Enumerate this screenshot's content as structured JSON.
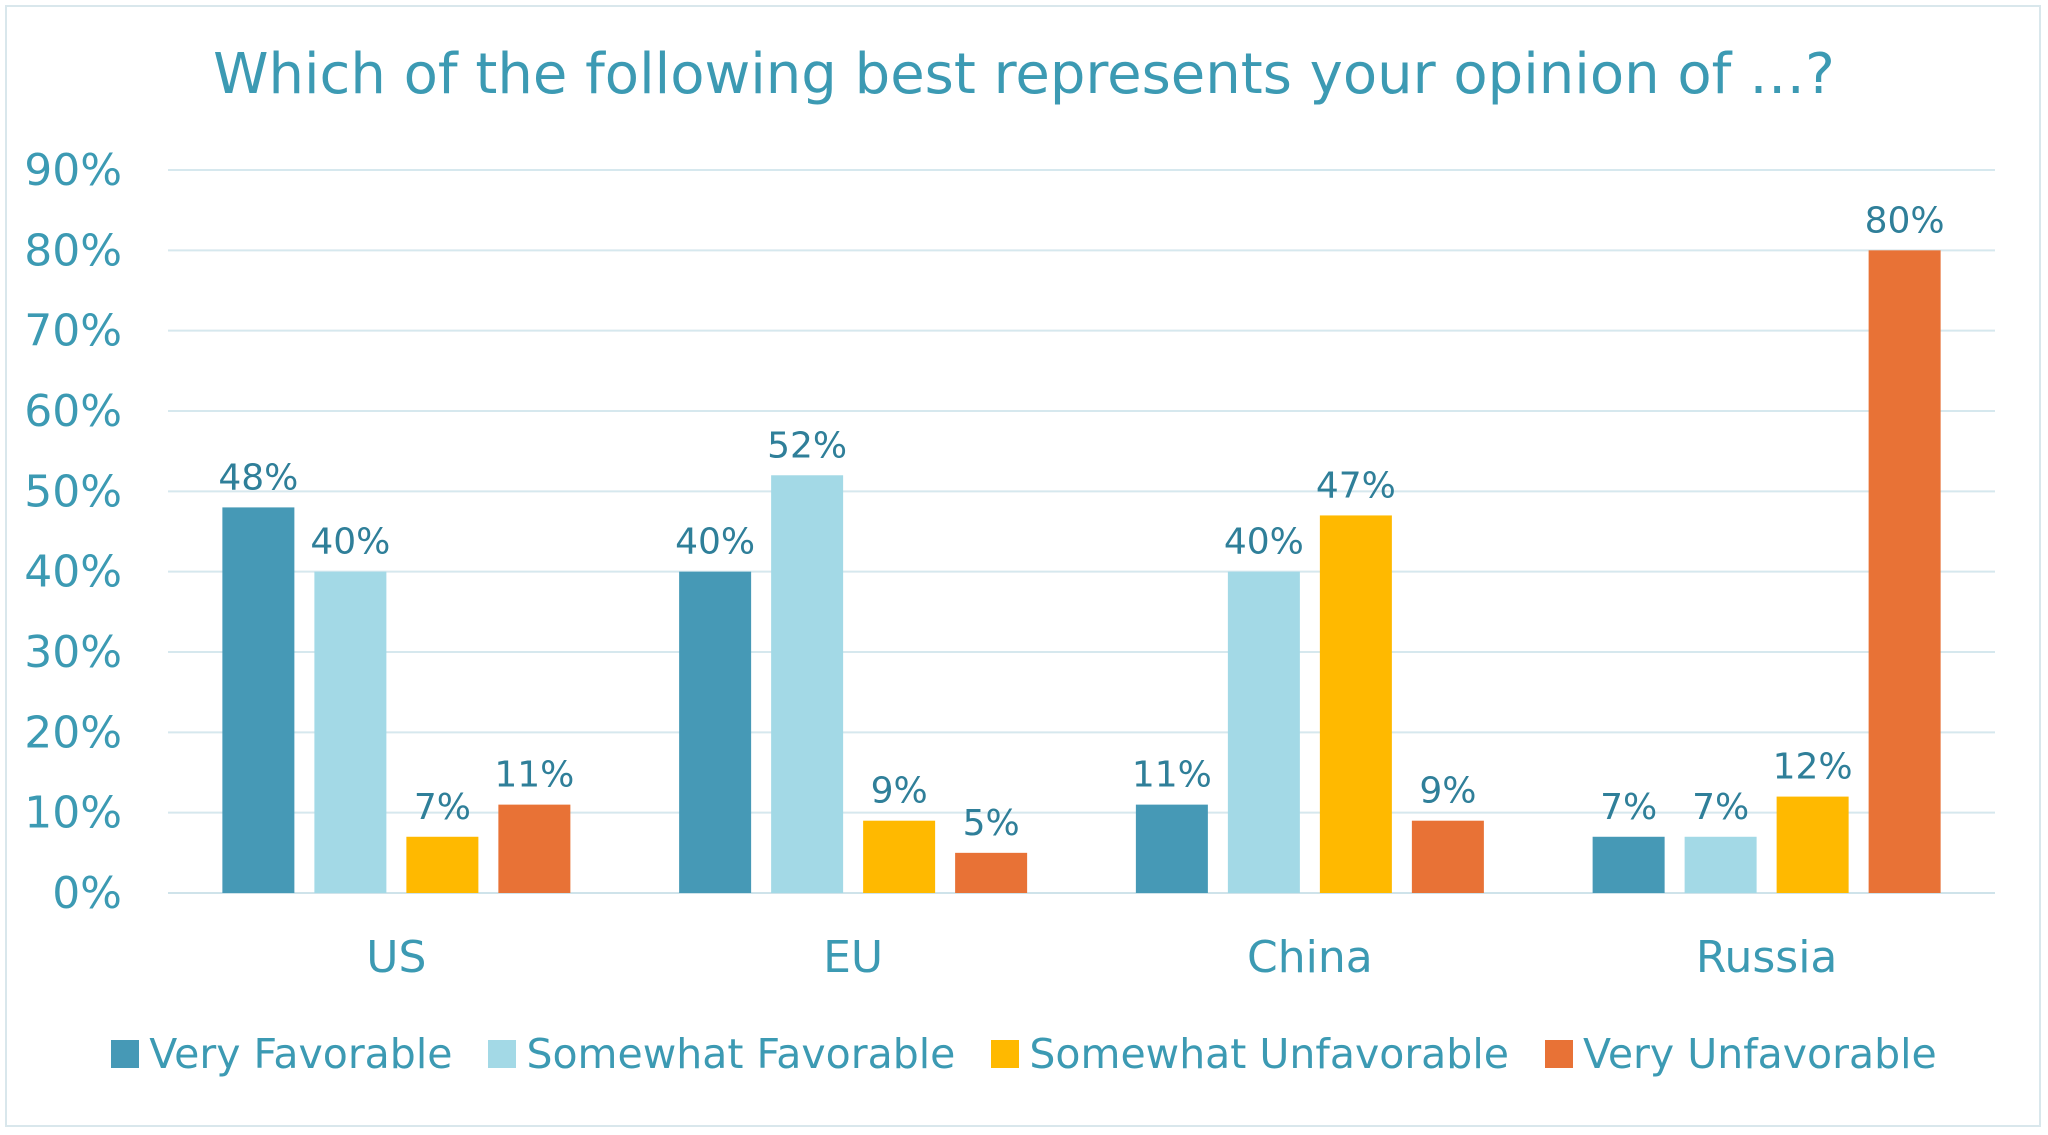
{
  "chart_data": {
    "type": "bar",
    "title": "Which of the following best represents your opinion of …?",
    "categories": [
      "US",
      "EU",
      "China",
      "Russia"
    ],
    "y_ticks": [
      "0%",
      "10%",
      "20%",
      "30%",
      "40%",
      "50%",
      "60%",
      "70%",
      "80%",
      "90%"
    ],
    "ylim": [
      0,
      90
    ],
    "grid": true,
    "legend_position": "bottom",
    "series": [
      {
        "name": "Very Favorable",
        "color": "#4699b6",
        "values": [
          48,
          40,
          11,
          7
        ],
        "labels": [
          "48%",
          "40%",
          "11%",
          "7%"
        ]
      },
      {
        "name": "Somewhat Favorable",
        "color": "#a3d9e6",
        "values": [
          40,
          52,
          40,
          7
        ],
        "labels": [
          "40%",
          "52%",
          "40%",
          "7%"
        ]
      },
      {
        "name": "Somewhat Unfavorable",
        "color": "#ffb900",
        "values": [
          7,
          9,
          47,
          12
        ],
        "labels": [
          "7%",
          "9%",
          "47%",
          "12%"
        ]
      },
      {
        "name": "Very Unfavorable",
        "color": "#e87236",
        "values": [
          11,
          5,
          9,
          80
        ],
        "labels": [
          "11%",
          "5%",
          "9%",
          "80%"
        ]
      }
    ]
  }
}
